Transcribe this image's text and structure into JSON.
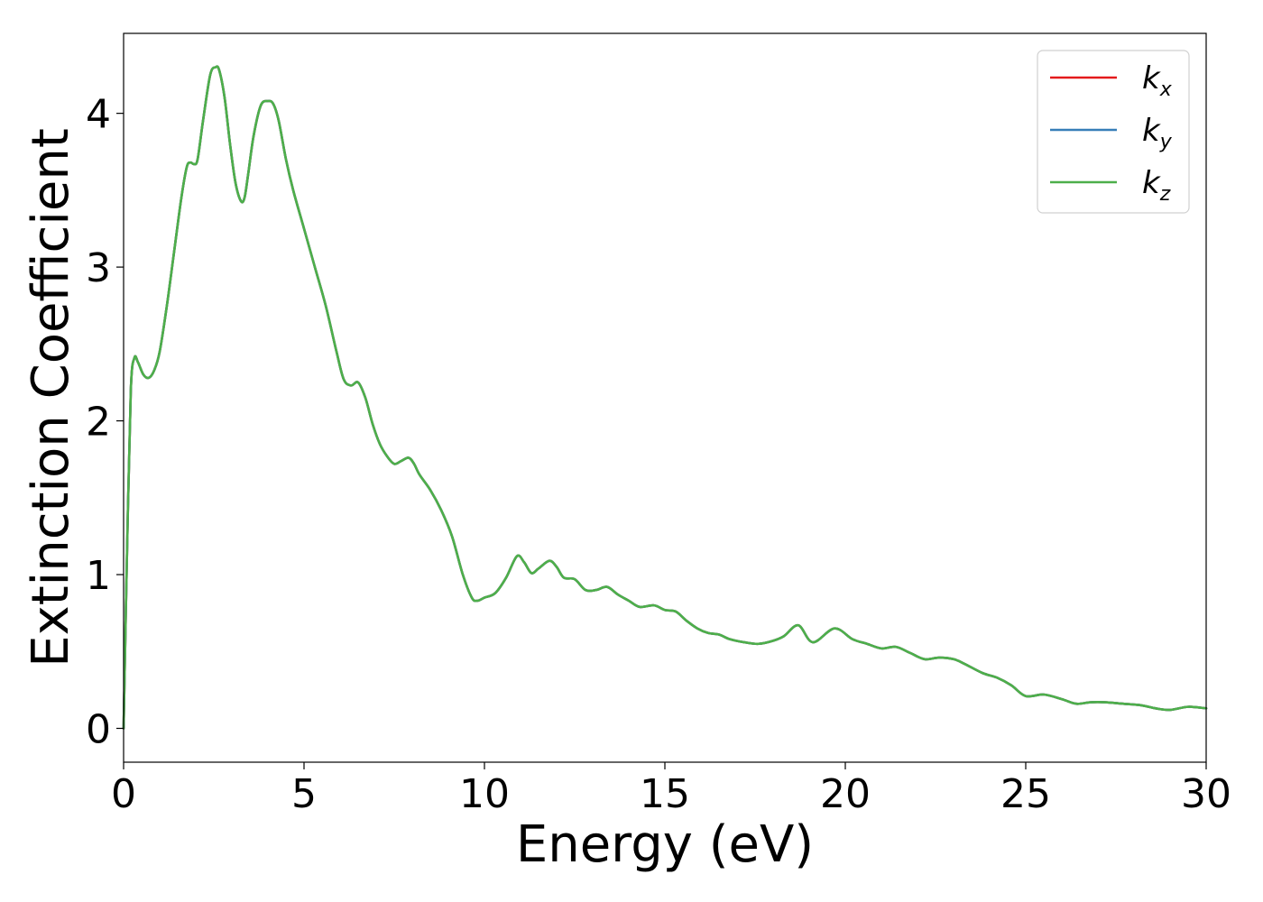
{
  "chart_data": {
    "type": "line",
    "title": "",
    "xlabel": "Energy (eV)",
    "ylabel": "Extinction Coefficient",
    "xlim": [
      0,
      30
    ],
    "ylim": [
      -0.22,
      4.52
    ],
    "xticks": [
      0,
      5,
      10,
      15,
      20,
      25,
      30
    ],
    "xtick_labels": [
      "0",
      "5",
      "10",
      "15",
      "20",
      "25",
      "30"
    ],
    "yticks": [
      0,
      1,
      2,
      3,
      4
    ],
    "ytick_labels": [
      "0",
      "1",
      "2",
      "3",
      "4"
    ],
    "grid": false,
    "legend_position": "top-right",
    "x": [
      0.0,
      0.1,
      0.2,
      0.3,
      0.4,
      0.55,
      0.7,
      0.85,
      1.0,
      1.2,
      1.4,
      1.6,
      1.75,
      1.85,
      1.95,
      2.05,
      2.2,
      2.4,
      2.55,
      2.65,
      2.8,
      2.95,
      3.1,
      3.25,
      3.35,
      3.45,
      3.6,
      3.8,
      4.0,
      4.15,
      4.3,
      4.5,
      4.7,
      5.0,
      5.3,
      5.6,
      5.9,
      6.1,
      6.3,
      6.5,
      6.7,
      6.9,
      7.1,
      7.3,
      7.5,
      7.7,
      7.9,
      8.05,
      8.2,
      8.5,
      8.8,
      9.1,
      9.4,
      9.65,
      9.8,
      10.0,
      10.3,
      10.6,
      10.9,
      11.1,
      11.3,
      11.5,
      11.8,
      12.0,
      12.2,
      12.5,
      12.8,
      13.1,
      13.4,
      13.7,
      14.0,
      14.3,
      14.7,
      15.0,
      15.3,
      15.6,
      15.9,
      16.2,
      16.5,
      16.8,
      17.2,
      17.6,
      18.0,
      18.3,
      18.7,
      19.1,
      19.7,
      20.2,
      20.6,
      21.0,
      21.4,
      21.8,
      22.2,
      22.6,
      23.0,
      23.3,
      23.8,
      24.2,
      24.6,
      25.0,
      25.5,
      26.0,
      26.4,
      26.8,
      27.2,
      27.7,
      28.2,
      28.6,
      29.0,
      29.5,
      30.0
    ],
    "series": [
      {
        "name": "k_x",
        "color": "#e41a1c",
        "y": [
          0.0,
          1.2,
          2.2,
          2.41,
          2.38,
          2.3,
          2.28,
          2.33,
          2.45,
          2.75,
          3.1,
          3.45,
          3.65,
          3.68,
          3.67,
          3.7,
          3.95,
          4.25,
          4.3,
          4.28,
          4.1,
          3.8,
          3.55,
          3.43,
          3.45,
          3.6,
          3.85,
          4.05,
          4.08,
          4.06,
          3.95,
          3.7,
          3.5,
          3.25,
          3.0,
          2.75,
          2.45,
          2.27,
          2.23,
          2.25,
          2.15,
          1.98,
          1.85,
          1.77,
          1.72,
          1.74,
          1.76,
          1.72,
          1.65,
          1.55,
          1.42,
          1.25,
          1.0,
          0.85,
          0.83,
          0.85,
          0.88,
          0.98,
          1.12,
          1.08,
          1.01,
          1.04,
          1.09,
          1.05,
          0.98,
          0.97,
          0.9,
          0.9,
          0.92,
          0.87,
          0.83,
          0.79,
          0.8,
          0.77,
          0.76,
          0.7,
          0.65,
          0.62,
          0.61,
          0.58,
          0.56,
          0.55,
          0.57,
          0.6,
          0.67,
          0.56,
          0.65,
          0.58,
          0.55,
          0.52,
          0.53,
          0.49,
          0.45,
          0.46,
          0.45,
          0.42,
          0.36,
          0.33,
          0.28,
          0.21,
          0.22,
          0.19,
          0.16,
          0.17,
          0.17,
          0.16,
          0.15,
          0.13,
          0.12,
          0.14,
          0.13
        ]
      },
      {
        "name": "k_y",
        "color": "#377eb8",
        "y": [
          0.0,
          1.2,
          2.2,
          2.41,
          2.38,
          2.3,
          2.28,
          2.33,
          2.45,
          2.75,
          3.1,
          3.45,
          3.65,
          3.68,
          3.67,
          3.7,
          3.95,
          4.25,
          4.3,
          4.28,
          4.1,
          3.8,
          3.55,
          3.43,
          3.45,
          3.6,
          3.85,
          4.05,
          4.08,
          4.06,
          3.95,
          3.7,
          3.5,
          3.25,
          3.0,
          2.75,
          2.45,
          2.27,
          2.23,
          2.25,
          2.15,
          1.98,
          1.85,
          1.77,
          1.72,
          1.74,
          1.76,
          1.72,
          1.65,
          1.55,
          1.42,
          1.25,
          1.0,
          0.85,
          0.83,
          0.85,
          0.88,
          0.98,
          1.12,
          1.08,
          1.01,
          1.04,
          1.09,
          1.05,
          0.98,
          0.97,
          0.9,
          0.9,
          0.92,
          0.87,
          0.83,
          0.79,
          0.8,
          0.77,
          0.76,
          0.7,
          0.65,
          0.62,
          0.61,
          0.58,
          0.56,
          0.55,
          0.57,
          0.6,
          0.67,
          0.56,
          0.65,
          0.58,
          0.55,
          0.52,
          0.53,
          0.49,
          0.45,
          0.46,
          0.45,
          0.42,
          0.36,
          0.33,
          0.28,
          0.21,
          0.22,
          0.19,
          0.16,
          0.17,
          0.17,
          0.16,
          0.15,
          0.13,
          0.12,
          0.14,
          0.13
        ]
      },
      {
        "name": "k_z",
        "color": "#4daf4a",
        "y": [
          0.0,
          1.2,
          2.2,
          2.41,
          2.38,
          2.3,
          2.28,
          2.33,
          2.45,
          2.75,
          3.1,
          3.45,
          3.65,
          3.68,
          3.67,
          3.7,
          3.95,
          4.25,
          4.3,
          4.28,
          4.1,
          3.8,
          3.55,
          3.43,
          3.45,
          3.6,
          3.85,
          4.05,
          4.08,
          4.06,
          3.95,
          3.7,
          3.5,
          3.25,
          3.0,
          2.75,
          2.45,
          2.27,
          2.23,
          2.25,
          2.15,
          1.98,
          1.85,
          1.77,
          1.72,
          1.74,
          1.76,
          1.72,
          1.65,
          1.55,
          1.42,
          1.25,
          1.0,
          0.85,
          0.83,
          0.85,
          0.88,
          0.98,
          1.12,
          1.08,
          1.01,
          1.04,
          1.09,
          1.05,
          0.98,
          0.97,
          0.9,
          0.9,
          0.92,
          0.87,
          0.83,
          0.79,
          0.8,
          0.77,
          0.76,
          0.7,
          0.65,
          0.62,
          0.61,
          0.58,
          0.56,
          0.55,
          0.57,
          0.6,
          0.67,
          0.56,
          0.65,
          0.58,
          0.55,
          0.52,
          0.53,
          0.49,
          0.45,
          0.46,
          0.45,
          0.42,
          0.36,
          0.33,
          0.28,
          0.21,
          0.22,
          0.19,
          0.16,
          0.17,
          0.17,
          0.16,
          0.15,
          0.13,
          0.12,
          0.14,
          0.13
        ]
      }
    ],
    "legend": [
      {
        "base": "k",
        "sub": "x",
        "color": "#e41a1c"
      },
      {
        "base": "k",
        "sub": "y",
        "color": "#377eb8"
      },
      {
        "base": "k",
        "sub": "z",
        "color": "#4daf4a"
      }
    ]
  }
}
